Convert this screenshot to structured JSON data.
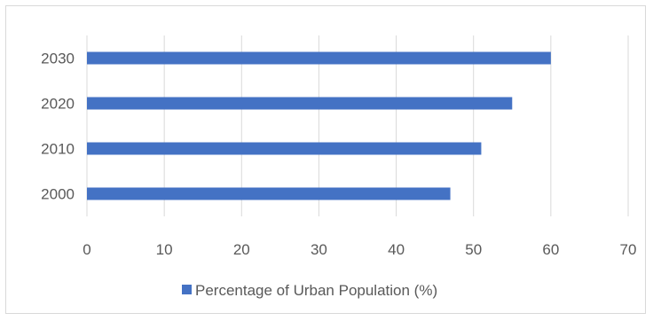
{
  "chart_data": {
    "type": "bar",
    "orientation": "horizontal",
    "categories": [
      "2000",
      "2010",
      "2020",
      "2030"
    ],
    "series": [
      {
        "name": "Percentage of Urban Population (%)",
        "values": [
          47,
          51,
          55,
          60
        ],
        "color": "#4472c4"
      }
    ],
    "xlim": [
      0,
      70
    ],
    "xticks": [
      "0",
      "10",
      "20",
      "30",
      "40",
      "50",
      "60",
      "70"
    ],
    "grid": true,
    "legend_position": "bottom"
  }
}
